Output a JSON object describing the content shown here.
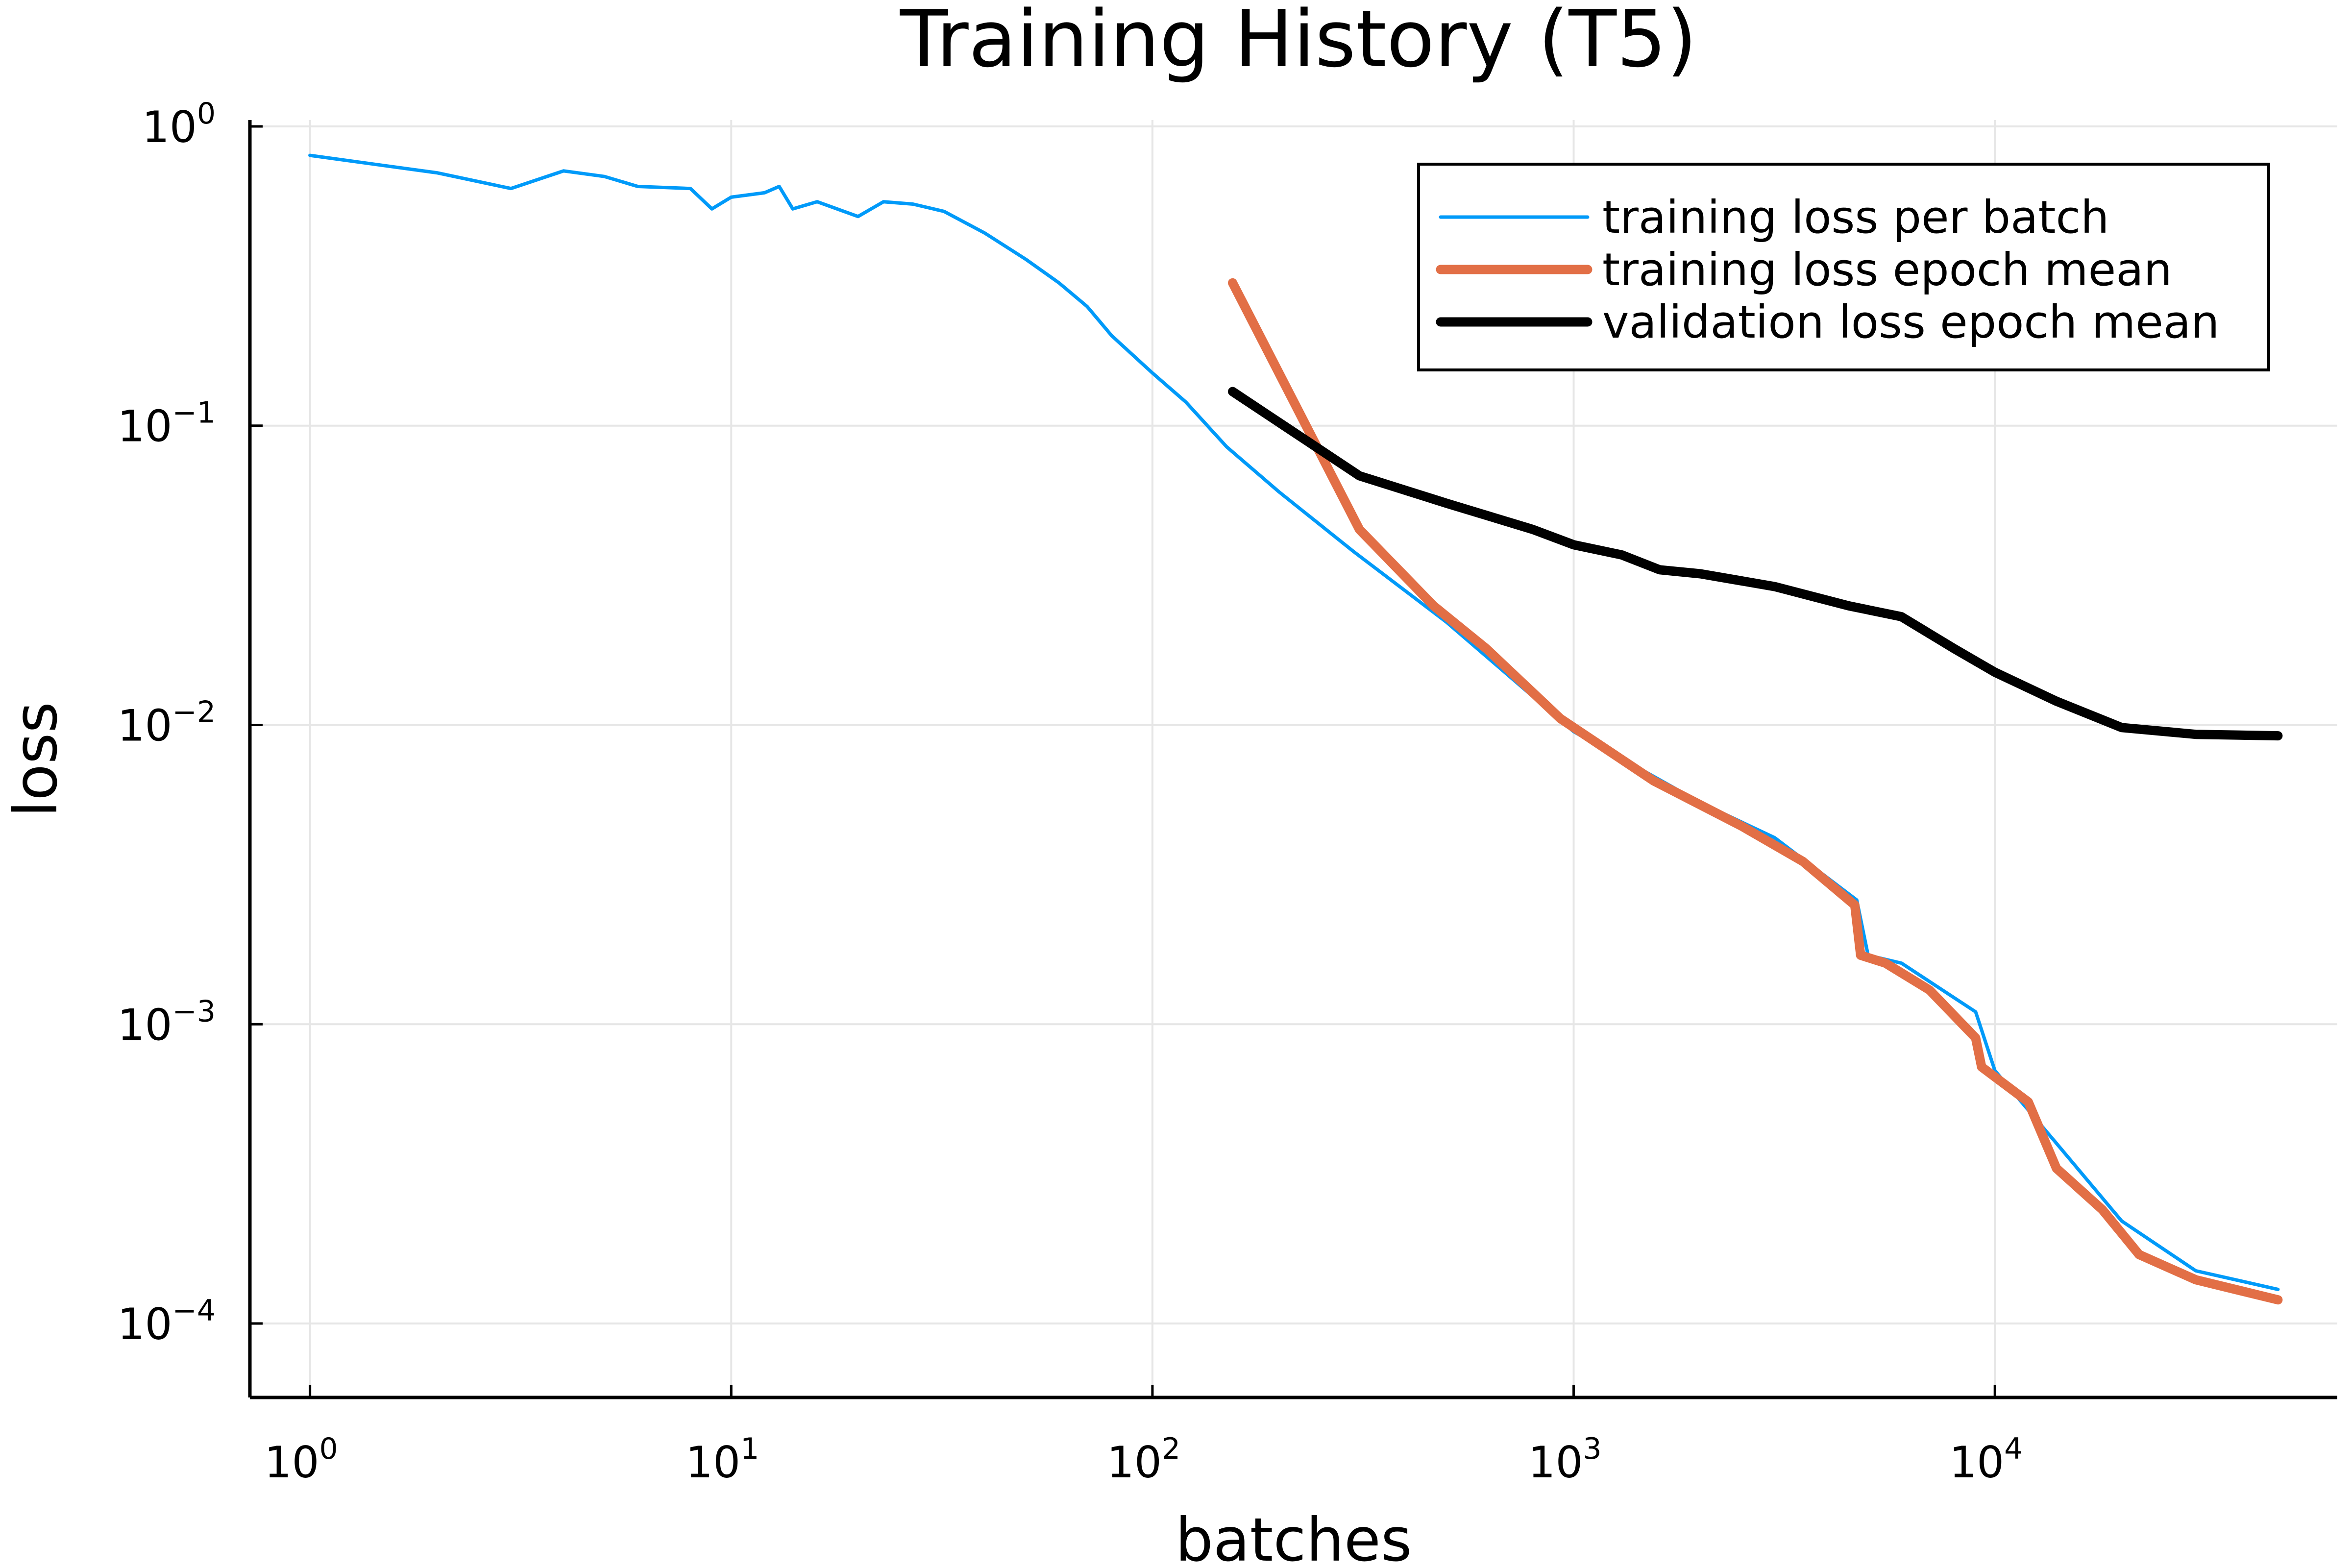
{
  "chart_data": {
    "type": "line",
    "title": "Training History (T5)",
    "xlabel": "batches",
    "ylabel": "loss",
    "xscale": "log",
    "yscale": "log",
    "xlim": [
      0.72,
      65000
    ],
    "ylim": [
      5.66e-05,
      1.05
    ],
    "grid": true,
    "legend_position": "top-right",
    "x_ticks": [
      {
        "base": "10",
        "exp": "0"
      },
      {
        "base": "10",
        "exp": "1"
      },
      {
        "base": "10",
        "exp": "2"
      },
      {
        "base": "10",
        "exp": "3"
      },
      {
        "base": "10",
        "exp": "4"
      }
    ],
    "y_ticks": [
      {
        "base": "10",
        "exp": "0"
      },
      {
        "base": "10",
        "exp": "−1"
      },
      {
        "base": "10",
        "exp": "−2"
      },
      {
        "base": "10",
        "exp": "−3"
      },
      {
        "base": "10",
        "exp": "−4"
      }
    ],
    "series": [
      {
        "name": "training loss per batch",
        "color": "#009af9",
        "width": 7,
        "points": [
          [
            1,
            0.8
          ],
          [
            2,
            0.7
          ],
          [
            3,
            0.62
          ],
          [
            4,
            0.71
          ],
          [
            5,
            0.68
          ],
          [
            6,
            0.63
          ],
          [
            8,
            0.62
          ],
          [
            9,
            0.53
          ],
          [
            10,
            0.58
          ],
          [
            12,
            0.6
          ],
          [
            13,
            0.63
          ],
          [
            14,
            0.53
          ],
          [
            16,
            0.56
          ],
          [
            20,
            0.5
          ],
          [
            23,
            0.56
          ],
          [
            27,
            0.55
          ],
          [
            32,
            0.52
          ],
          [
            40,
            0.44
          ],
          [
            50,
            0.36
          ],
          [
            60,
            0.3
          ],
          [
            70,
            0.25
          ],
          [
            80,
            0.2
          ],
          [
            100,
            0.15
          ],
          [
            120,
            0.12
          ],
          [
            150,
            0.085
          ],
          [
            200,
            0.06
          ],
          [
            300,
            0.038
          ],
          [
            500,
            0.022
          ],
          [
            1000,
            0.0095
          ],
          [
            2000,
            0.0055
          ],
          [
            3000,
            0.0042
          ],
          [
            4700,
            0.0026
          ],
          [
            5000,
            0.0017
          ],
          [
            6000,
            0.0016
          ],
          [
            9000,
            0.0011
          ],
          [
            10000,
            0.0007
          ],
          [
            14000,
            0.0004
          ],
          [
            20000,
            0.00022
          ],
          [
            30000,
            0.00015
          ],
          [
            47000,
            0.00013
          ]
        ]
      },
      {
        "name": "training loss epoch mean",
        "color": "#e26f46",
        "width": 19,
        "points": [
          [
            155,
            0.3
          ],
          [
            310,
            0.045
          ],
          [
            465,
            0.025
          ],
          [
            620,
            0.018
          ],
          [
            930,
            0.0105
          ],
          [
            1550,
            0.0065
          ],
          [
            2500,
            0.0046
          ],
          [
            3500,
            0.0035
          ],
          [
            4650,
            0.0025
          ],
          [
            4800,
            0.0017
          ],
          [
            5500,
            0.0016
          ],
          [
            7000,
            0.0013
          ],
          [
            9000,
            0.0009
          ],
          [
            9300,
            0.00072
          ],
          [
            12000,
            0.00055
          ],
          [
            14000,
            0.00033
          ],
          [
            18000,
            0.00024
          ],
          [
            22000,
            0.00017
          ],
          [
            30000,
            0.00014
          ],
          [
            47000,
            0.00012
          ]
        ]
      },
      {
        "name": "validation loss epoch mean",
        "color": "#000000",
        "width": 19,
        "points": [
          [
            155,
            0.13
          ],
          [
            310,
            0.068
          ],
          [
            500,
            0.055
          ],
          [
            800,
            0.045
          ],
          [
            1000,
            0.04
          ],
          [
            1300,
            0.037
          ],
          [
            1600,
            0.033
          ],
          [
            2000,
            0.032
          ],
          [
            3000,
            0.029
          ],
          [
            4500,
            0.025
          ],
          [
            6000,
            0.023
          ],
          [
            8000,
            0.018
          ],
          [
            10000,
            0.015
          ],
          [
            14000,
            0.012
          ],
          [
            20000,
            0.0098
          ],
          [
            30000,
            0.0093
          ],
          [
            47000,
            0.0092
          ]
        ]
      }
    ]
  }
}
